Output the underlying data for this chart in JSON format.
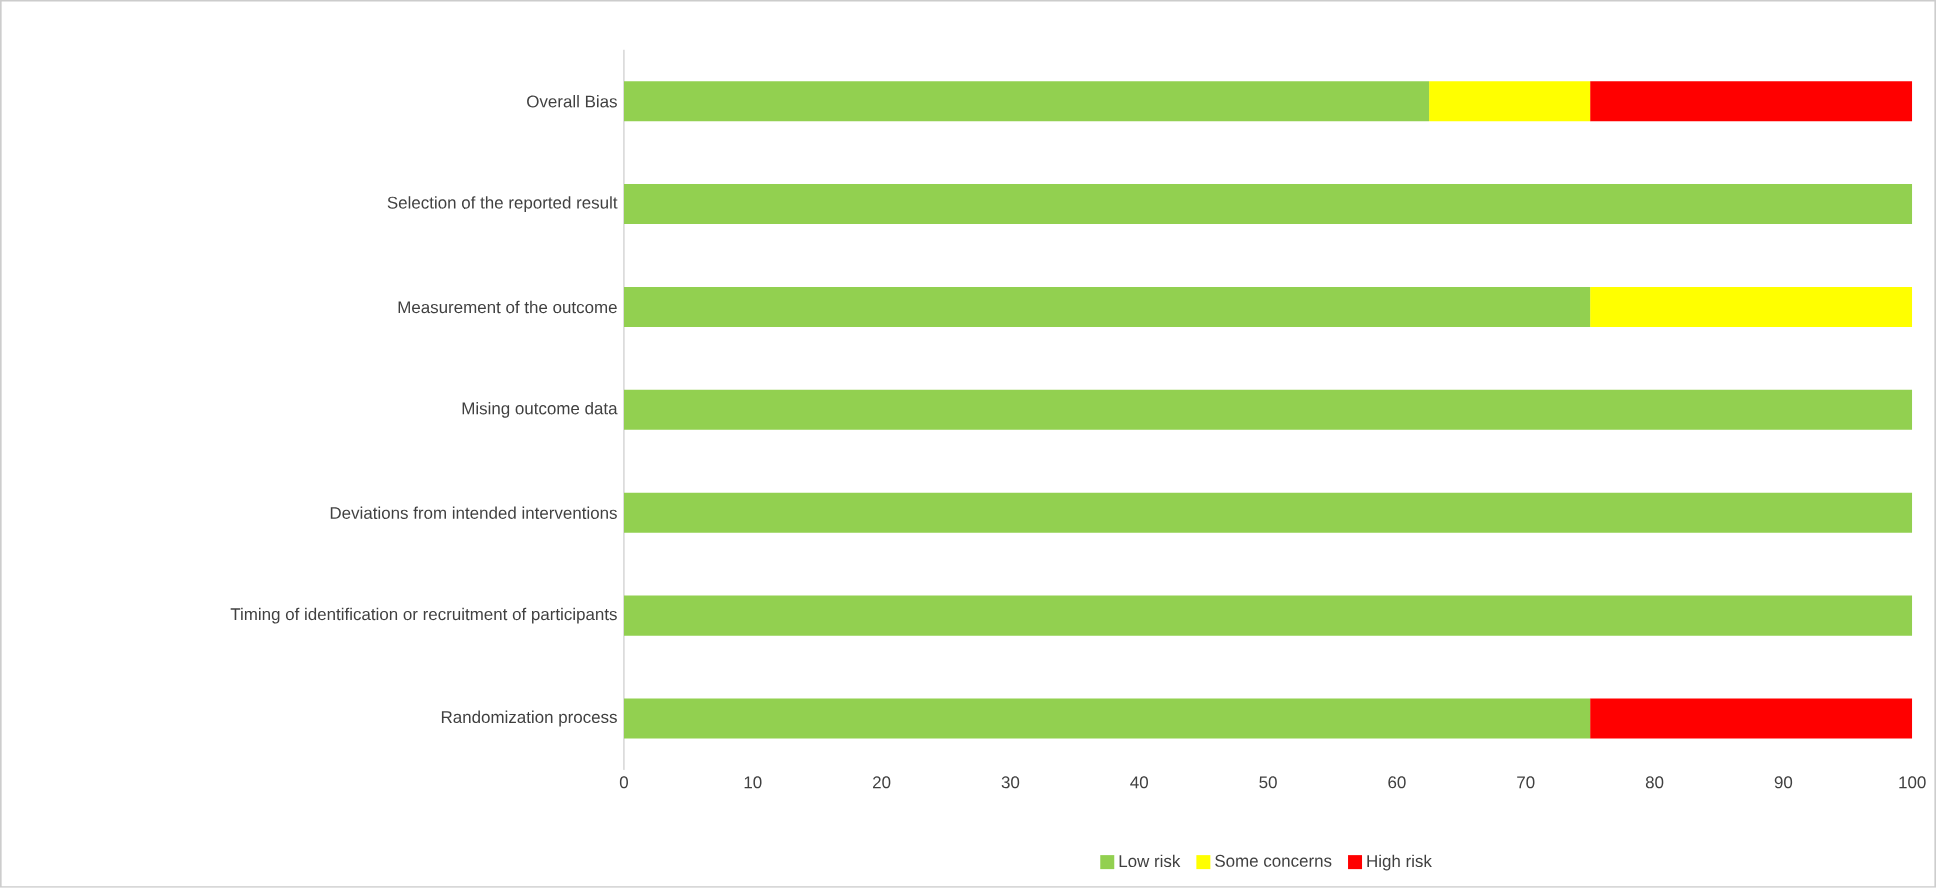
{
  "chart_data": {
    "type": "bar",
    "orientation": "horizontal",
    "stacked": true,
    "categories": [
      "Overall Bias",
      "Selection of the reported result",
      "Measurement of the outcome",
      "Mising outcome data",
      "Deviations from intended interventions",
      "Timing of identification or recruitment of participants",
      "Randomization process"
    ],
    "series": [
      {
        "name": "Low risk",
        "color": "#92d050",
        "values": [
          62.5,
          100,
          75,
          100,
          100,
          100,
          75
        ]
      },
      {
        "name": "Some concerns",
        "color": "#ffff00",
        "values": [
          12.5,
          0,
          25,
          0,
          0,
          0,
          0
        ]
      },
      {
        "name": "High risk",
        "color": "#ff0000",
        "values": [
          25,
          0,
          0,
          0,
          0,
          0,
          25
        ]
      }
    ],
    "xlim": [
      0,
      100
    ],
    "xticks": [
      0,
      10,
      20,
      30,
      40,
      50,
      60,
      70,
      80,
      90,
      100
    ],
    "legend": "bottom"
  }
}
